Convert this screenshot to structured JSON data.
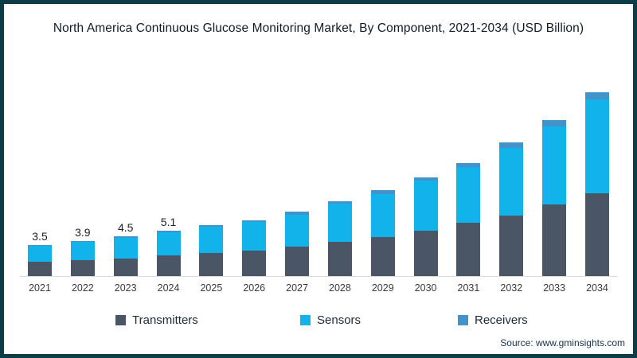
{
  "title": "North America Continuous Glucose Monitoring Market, By Component, 2021-2034 (USD Billion)",
  "source": "Source: www.gminsights.com",
  "colors": {
    "transmitters": "#4a5565",
    "sensors": "#12b3ea",
    "receivers": "#4293c9",
    "frame_border": "#0d3c46",
    "axis_line": "#d9d9d9",
    "title_text": "#121c26",
    "value_label_text": "#1f1f1f"
  },
  "legend": {
    "items": [
      {
        "label": "Transmitters"
      },
      {
        "label": "Sensors"
      },
      {
        "label": "Receivers"
      }
    ]
  },
  "chart_data": {
    "type": "bar",
    "stacked": true,
    "title": "North America Continuous Glucose Monitoring Market, By Component, 2021-2034 (USD Billion)",
    "unit": "USD Billion",
    "categories": [
      "2021",
      "2022",
      "2023",
      "2024",
      "2025",
      "2026",
      "2027",
      "2028",
      "2029",
      "2030",
      "2031",
      "2032",
      "2033",
      "2034"
    ],
    "series": [
      {
        "name": "Transmitters",
        "color": "#4a5565",
        "values": [
          1.6,
          1.8,
          2.0,
          2.3,
          2.6,
          2.9,
          3.3,
          3.8,
          4.4,
          5.1,
          6.0,
          6.8,
          8.0,
          9.3
        ]
      },
      {
        "name": "Sensors",
        "color": "#12b3ea",
        "values": [
          1.8,
          2.0,
          2.3,
          2.6,
          2.9,
          3.2,
          3.6,
          4.3,
          4.8,
          5.6,
          6.2,
          7.6,
          8.8,
          10.5
        ]
      },
      {
        "name": "Receivers",
        "color": "#4293c9",
        "values": [
          0.1,
          0.1,
          0.2,
          0.2,
          0.2,
          0.2,
          0.3,
          0.3,
          0.4,
          0.4,
          0.5,
          0.6,
          0.7,
          0.8
        ]
      }
    ],
    "totals": [
      3.5,
      3.9,
      4.5,
      5.1,
      5.7,
      6.3,
      7.2,
      8.4,
      9.6,
      11.1,
      12.7,
      15.0,
      17.5,
      20.6
    ],
    "shown_value_labels": [
      "3.5",
      "3.9",
      "4.5",
      "5.1"
    ],
    "ylim": [
      0,
      21
    ],
    "grid": false,
    "legend_position": "bottom"
  }
}
